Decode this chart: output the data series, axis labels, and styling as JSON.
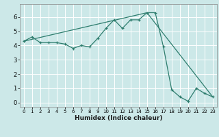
{
  "title": "",
  "xlabel": "Humidex (Indice chaleur)",
  "bg_color": "#cce8e8",
  "grid_color": "#ffffff",
  "line_color": "#2e7d6e",
  "xlim": [
    -0.5,
    23.5
  ],
  "ylim": [
    -0.3,
    6.9
  ],
  "xticks": [
    0,
    1,
    2,
    3,
    4,
    5,
    6,
    7,
    8,
    9,
    10,
    11,
    12,
    13,
    14,
    15,
    16,
    17,
    18,
    19,
    20,
    21,
    22,
    23
  ],
  "yticks": [
    0,
    1,
    2,
    3,
    4,
    5,
    6
  ],
  "series1_x": [
    0,
    1,
    2,
    3,
    4,
    5,
    6,
    7,
    8,
    9,
    10,
    11,
    12,
    13,
    14,
    15,
    16,
    17,
    18,
    19,
    20,
    21,
    22,
    23
  ],
  "series1_y": [
    4.3,
    4.6,
    4.2,
    4.2,
    4.2,
    4.1,
    3.8,
    4.0,
    3.9,
    4.5,
    5.2,
    5.8,
    5.2,
    5.8,
    5.8,
    6.3,
    6.3,
    3.9,
    0.9,
    0.4,
    0.1,
    1.0,
    0.65,
    0.4
  ],
  "series2_x": [
    0,
    15,
    23
  ],
  "series2_y": [
    4.3,
    6.3,
    0.4
  ]
}
